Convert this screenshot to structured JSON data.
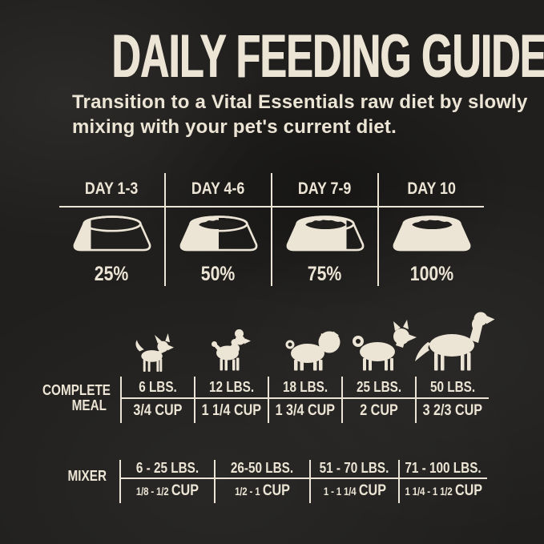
{
  "title": "DAILY FEEDING GUIDE",
  "subtitle_line1": "Transition to a Vital Essentials raw diet by slowly",
  "subtitle_line2": "mixing with your pet's current diet.",
  "transition": {
    "bowl_icon": "dog-bowl-icon",
    "columns": [
      {
        "day": "DAY 1-3",
        "percent": "25%",
        "fill": 25
      },
      {
        "day": "DAY 4-6",
        "percent": "50%",
        "fill": 50
      },
      {
        "day": "DAY 7-9",
        "percent": "75%",
        "fill": 75
      },
      {
        "day": "DAY 10",
        "percent": "100%",
        "fill": 100
      }
    ]
  },
  "dogs": {
    "breeds": [
      "chihuahua",
      "toy-poodle",
      "pug",
      "shiba-inu",
      "golden-retriever"
    ]
  },
  "complete_meal": {
    "label_line1": "COMPLETE",
    "label_line2": "MEAL",
    "columns": [
      {
        "weight": "6 LBS.",
        "cup": "3/4 CUP"
      },
      {
        "weight": "12 LBS.",
        "cup": "1 1/4 CUP"
      },
      {
        "weight": "18 LBS.",
        "cup": "1 3/4 CUP"
      },
      {
        "weight": "25 LBS.",
        "cup": "2 CUP"
      },
      {
        "weight": "50 LBS.",
        "cup": "3 2/3 CUP"
      }
    ]
  },
  "mixer": {
    "label": "MIXER",
    "columns": [
      {
        "weight": "6 - 25 LBS.",
        "cup_range": "1/8 - 1/2",
        "cup_unit": "CUP"
      },
      {
        "weight": "26-50 LBS.",
        "cup_range": "1/2 - 1",
        "cup_unit": "CUP"
      },
      {
        "weight": "51 - 70 LBS.",
        "cup_range": "1 - 1 1/4",
        "cup_unit": "CUP"
      },
      {
        "weight": "71 - 100 LBS.",
        "cup_range": "1 1/4 - 1 1/2",
        "cup_unit": "CUP"
      }
    ]
  },
  "colors": {
    "background": "#201f1d",
    "cream": "#ece5d5"
  }
}
